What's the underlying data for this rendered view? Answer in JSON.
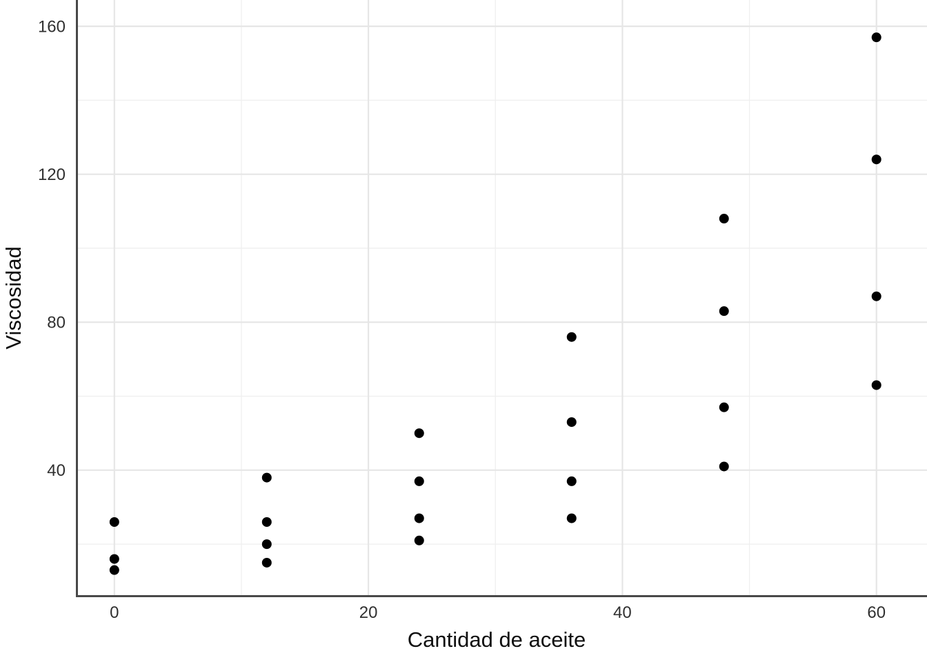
{
  "chart_data": {
    "type": "scatter",
    "title": "",
    "xlabel": "Cantidad de aceite",
    "ylabel": "Viscosidad",
    "x_ticks": [
      0,
      20,
      40,
      60
    ],
    "y_ticks": [
      40,
      80,
      120,
      160
    ],
    "x_minor_ticks": [
      10,
      30,
      50
    ],
    "y_minor_ticks": [
      20,
      60,
      100,
      140
    ],
    "xlim": [
      -2.95,
      63.98
    ],
    "ylim": [
      5.95,
      167.1
    ],
    "grid": true,
    "legend": false,
    "series": [
      {
        "name": "viscosidad",
        "points": [
          [
            0,
            26
          ],
          [
            0,
            16
          ],
          [
            0,
            13
          ],
          [
            12,
            38
          ],
          [
            12,
            26
          ],
          [
            12,
            20
          ],
          [
            12,
            15
          ],
          [
            24,
            50
          ],
          [
            24,
            37
          ],
          [
            24,
            27
          ],
          [
            24,
            21
          ],
          [
            36,
            76
          ],
          [
            36,
            53
          ],
          [
            36,
            37
          ],
          [
            36,
            27
          ],
          [
            48,
            108
          ],
          [
            48,
            83
          ],
          [
            48,
            57
          ],
          [
            48,
            41
          ],
          [
            60,
            157
          ],
          [
            60,
            124
          ],
          [
            60,
            87
          ],
          [
            60,
            63
          ]
        ]
      }
    ],
    "colors": {
      "background": "#ffffff",
      "point": "#000000",
      "grid_major": "#e6e6e6",
      "grid_minor": "#efefef",
      "axis_line": "#484848",
      "tick_text": "#303030",
      "title_text": "#0f0f0f"
    }
  }
}
